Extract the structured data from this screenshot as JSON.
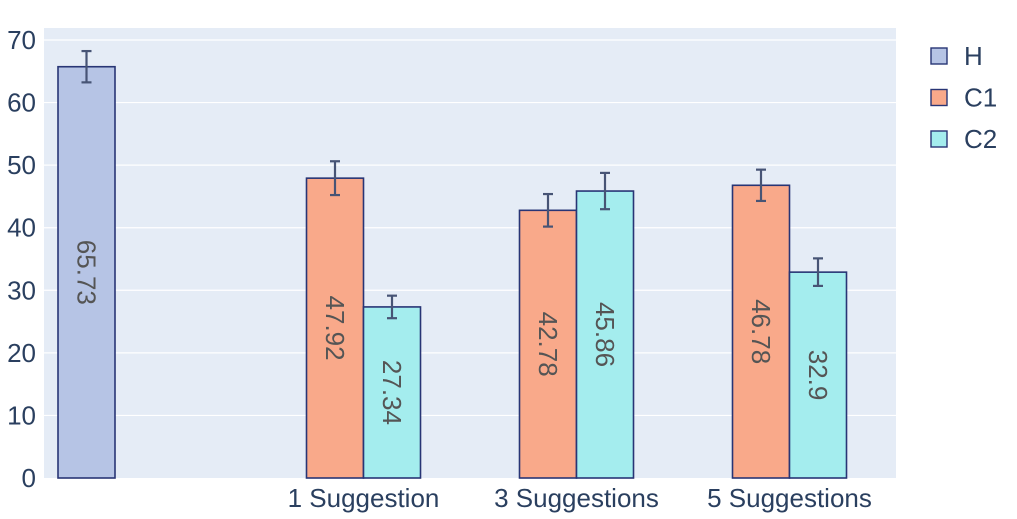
{
  "chart_data": {
    "type": "bar",
    "categories": [
      "",
      "1 Suggestion",
      "3 Suggestions",
      "5 Suggestions"
    ],
    "series": [
      {
        "name": "H",
        "color": "#b6c4e5",
        "values": [
          65.73,
          null,
          null,
          null
        ],
        "errors": [
          2.5,
          null,
          null,
          null
        ]
      },
      {
        "name": "C1",
        "color": "#f9a98a",
        "values": [
          null,
          47.92,
          42.78,
          46.78
        ],
        "errors": [
          null,
          2.7,
          2.6,
          2.5
        ]
      },
      {
        "name": "C2",
        "color": "#a4edee",
        "values": [
          null,
          27.34,
          45.86,
          32.9
        ],
        "errors": [
          null,
          1.8,
          2.9,
          2.2
        ]
      }
    ],
    "yticks": [
      "0",
      "10",
      "20",
      "30",
      "40",
      "50",
      "60",
      "70"
    ],
    "ylim": [
      0,
      70
    ],
    "grid": true,
    "legend_position": "top-right",
    "plot_background": "#e5ecf6",
    "bar_outline": "#283575",
    "error_bar_color": "#475475"
  }
}
